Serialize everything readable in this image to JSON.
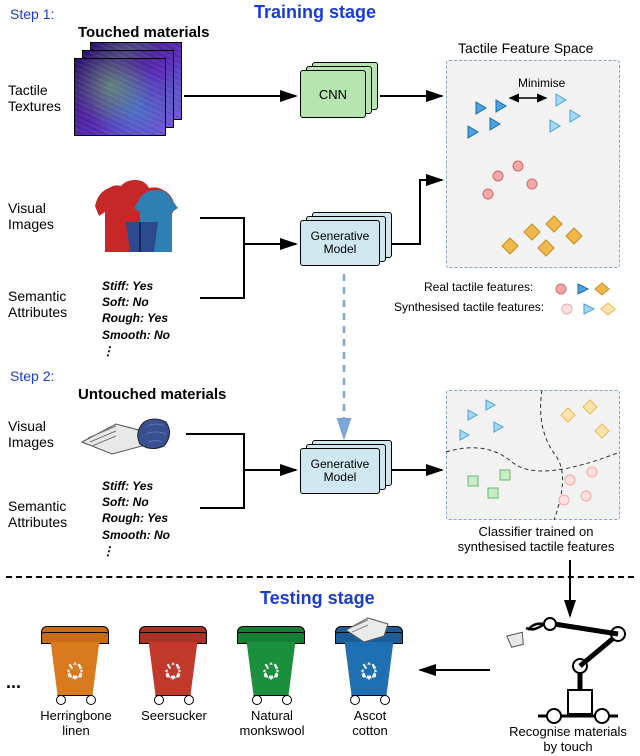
{
  "stages": {
    "training": "Training stage",
    "testing": "Testing stage"
  },
  "steps": {
    "s1": "Step 1:",
    "s2": "Step 2:"
  },
  "section_titles": {
    "touched": "Touched materials",
    "untouched": "Untouched materials"
  },
  "row_labels": {
    "tactile": "Tactile\nTextures",
    "visual1": "Visual\nImages",
    "semantic1": "Semantic\nAttributes",
    "visual2": "Visual\nImages",
    "semantic2": "Semantic\nAttributes"
  },
  "attrs1": "Stiff: Yes\nSoft: No\nRough: Yes\nSmooth: No\n⋮",
  "attrs2": "Stiff: Yes\nSoft: No\nRough: Yes\nSmooth: No\n⋮",
  "cnn": "CNN",
  "gen": "Generative\nModel",
  "panel1": {
    "title": "Tactile Feature Space",
    "minimise": "Minimise"
  },
  "legend": {
    "real": "Real tactile features:",
    "syn": "Synthesised tactile features:"
  },
  "panel2": {
    "caption": "Classifier trained on\nsynthesised tactile features"
  },
  "robot_caption": "Recognise materials\nby touch",
  "bins": [
    {
      "label": "Herringbone\nlinen",
      "body": "#d97a1f",
      "lid": "#c86c16"
    },
    {
      "label": "Seersucker",
      "body": "#c0392b",
      "lid": "#a93226"
    },
    {
      "label": "Natural\nmonkswool",
      "body": "#1a8f3c",
      "lid": "#167d33"
    },
    {
      "label": "Ascot\ncotton",
      "body": "#1f6fb3",
      "lid": "#195e98"
    }
  ],
  "dots": "...",
  "colors": {
    "marker_blue": "#4aa3e0",
    "marker_pink": "#f4a7a7",
    "marker_orange": "#f0b84a",
    "marker_green": "#8fd69a",
    "dashed_blue": "#7ea6d9",
    "cluster_border": "#333"
  }
}
